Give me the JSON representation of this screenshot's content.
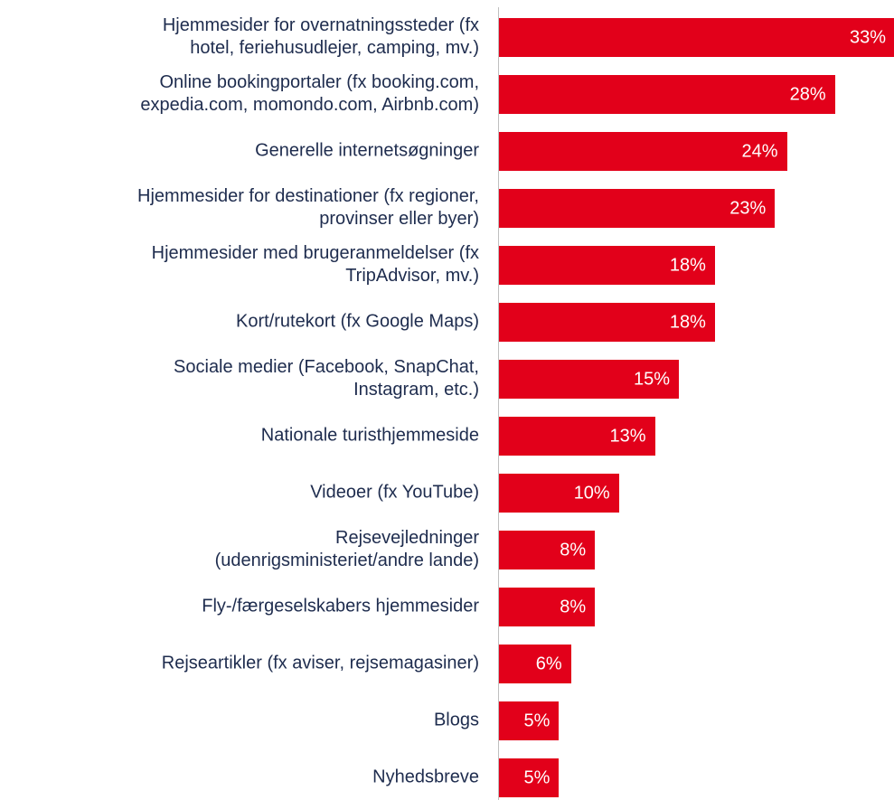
{
  "chart_data": {
    "type": "bar",
    "orientation": "horizontal",
    "color": "#e2001a",
    "categories": [
      "Hjemmesider for overnatningssteder (fx\nhotel, feriehusudlejer, camping, mv.)",
      "Online bookingportaler (fx booking.com,\nexpedia.com, momondo.com, Airbnb.com)",
      "Generelle internetsøgninger",
      "Hjemmesider for destinationer (fx regioner,\nprovinser eller byer)",
      "Hjemmesider med brugeranmeldelser (fx\nTripAdvisor, mv.)",
      "Kort/rutekort (fx Google Maps)",
      "Sociale medier (Facebook, SnapChat,\nInstagram, etc.)",
      "Nationale turisthjemmeside",
      "Videoer (fx YouTube)",
      "Rejsevejledninger\n(udenrigsministeriet/andre lande)",
      "Fly-/færgeselskabers hjemmesider",
      "Rejseartikler (fx aviser, rejsemagasiner)",
      "Blogs",
      "Nyhedsbreve"
    ],
    "values": [
      33,
      28,
      24,
      23,
      18,
      18,
      15,
      13,
      10,
      8,
      8,
      6,
      5,
      5
    ],
    "value_labels": [
      "33%",
      "28%",
      "24%",
      "23%",
      "18%",
      "18%",
      "15%",
      "13%",
      "10%",
      "8%",
      "8%",
      "6%",
      "5%",
      "5%"
    ]
  }
}
